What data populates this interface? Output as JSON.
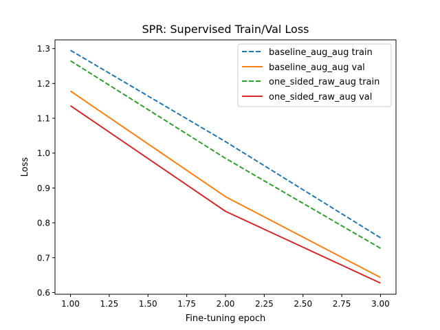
{
  "chart_data": {
    "type": "line",
    "title": "SPR: Supervised Train/Val Loss",
    "xlabel": "Fine-tuning epoch",
    "ylabel": "Loss",
    "xlim": [
      0.9,
      3.1
    ],
    "ylim": [
      0.595,
      1.325
    ],
    "xticks": [
      1.0,
      1.25,
      1.5,
      1.75,
      2.0,
      2.25,
      2.5,
      2.75,
      3.0
    ],
    "xtick_labels": [
      "1.00",
      "1.25",
      "1.50",
      "1.75",
      "2.00",
      "2.25",
      "2.50",
      "2.75",
      "3.00"
    ],
    "yticks": [
      0.6,
      0.7,
      0.8,
      0.9,
      1.0,
      1.1,
      1.2,
      1.3
    ],
    "ytick_labels": [
      "0.6",
      "0.7",
      "0.8",
      "0.9",
      "1.0",
      "1.1",
      "1.2",
      "1.3"
    ],
    "grid": false,
    "legend_position": "top-right",
    "x": [
      1,
      2,
      3
    ],
    "series": [
      {
        "name": "baseline_aug_aug train",
        "values": [
          1.295,
          1.033,
          0.757
        ],
        "color": "#1f77b4",
        "style": "dashed"
      },
      {
        "name": "baseline_aug_aug val",
        "values": [
          1.178,
          0.875,
          0.643
        ],
        "color": "#ff7f0e",
        "style": "solid"
      },
      {
        "name": "one_sided_raw_aug train",
        "values": [
          1.265,
          0.985,
          0.727
        ],
        "color": "#2ca02c",
        "style": "dashed"
      },
      {
        "name": "one_sided_raw_aug val",
        "values": [
          1.136,
          0.833,
          0.627
        ],
        "color": "#d62728",
        "style": "solid"
      }
    ]
  }
}
